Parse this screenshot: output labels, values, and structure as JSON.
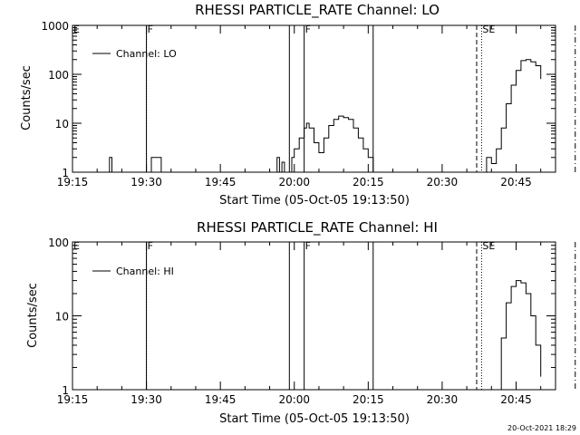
{
  "footer_text": "20-Oct-2021 18:29",
  "chart_data": [
    {
      "type": "line",
      "title": "RHESSI PARTICLE_RATE Channel: LO",
      "xlabel": "Start Time (05-Oct-05 19:13:50)",
      "ylabel": "Counts/sec",
      "yscale": "log",
      "xlim": [
        "19:15",
        "20:53"
      ],
      "ylim": [
        1,
        1000
      ],
      "x_ticks": [
        "19:15",
        "19:30",
        "19:45",
        "20:00",
        "20:15",
        "20:30",
        "20:45"
      ],
      "y_ticks": [
        "1",
        "10",
        "100",
        "1000"
      ],
      "legend": {
        "label": "Channel: LO",
        "placement": "top-left"
      },
      "markers": [
        {
          "time": "19:15",
          "style": "none",
          "label": "E"
        },
        {
          "time": "19:30",
          "style": "dotted",
          "label": ""
        },
        {
          "time": "19:30",
          "style": "solid",
          "label": "F"
        },
        {
          "time": "19:59",
          "style": "solid",
          "label": ""
        },
        {
          "time": "20:02",
          "style": "solid",
          "label": "F"
        },
        {
          "time": "20:16",
          "style": "solid",
          "label": ""
        },
        {
          "time": "20:37",
          "style": "dashed",
          "label": ""
        },
        {
          "time": "20:38",
          "style": "dotted",
          "label": "SE"
        },
        {
          "time": "20:57",
          "style": "dashdot",
          "label": ""
        }
      ],
      "segments": [
        [
          [
            "19:22",
            1
          ],
          [
            "19:22.5",
            2
          ],
          [
            "19:23",
            1
          ]
        ],
        [
          [
            "19:30",
            1
          ],
          [
            "19:31",
            2
          ],
          [
            "19:32",
            2
          ],
          [
            "19:33",
            1
          ]
        ],
        [
          [
            "19:56",
            1
          ],
          [
            "19:56.5",
            2
          ],
          [
            "19:57",
            1
          ],
          [
            "19:57.5",
            1.6
          ],
          [
            "19:58",
            1
          ]
        ],
        [
          [
            "19:59",
            1
          ],
          [
            "19:59.5",
            2
          ],
          [
            "20:00",
            3
          ],
          [
            "20:01",
            5
          ],
          [
            "20:02",
            8
          ],
          [
            "20:02.5",
            10
          ],
          [
            "20:03",
            8
          ],
          [
            "20:04",
            4
          ],
          [
            "20:05",
            2.5
          ],
          [
            "20:06",
            5
          ],
          [
            "20:07",
            9
          ],
          [
            "20:08",
            12
          ],
          [
            "20:09",
            14
          ],
          [
            "20:10",
            13
          ],
          [
            "20:11",
            12
          ],
          [
            "20:12",
            8
          ],
          [
            "20:13",
            5
          ],
          [
            "20:14",
            3
          ],
          [
            "20:15",
            2
          ],
          [
            "20:16",
            1
          ]
        ],
        [
          [
            "20:38",
            1
          ],
          [
            "20:39",
            2
          ],
          [
            "20:40",
            1.5
          ],
          [
            "20:41",
            3
          ],
          [
            "20:42",
            8
          ],
          [
            "20:43",
            25
          ],
          [
            "20:44",
            60
          ],
          [
            "20:45",
            120
          ],
          [
            "20:46",
            190
          ],
          [
            "20:47",
            200
          ],
          [
            "20:48",
            180
          ],
          [
            "20:49",
            150
          ],
          [
            "20:50",
            80
          ]
        ]
      ]
    },
    {
      "type": "line",
      "title": "RHESSI PARTICLE_RATE Channel: HI",
      "xlabel": "Start Time (05-Oct-05 19:13:50)",
      "ylabel": "Counts/sec",
      "yscale": "log",
      "xlim": [
        "19:15",
        "20:53"
      ],
      "ylim": [
        1,
        100
      ],
      "x_ticks": [
        "19:15",
        "19:30",
        "19:45",
        "20:00",
        "20:15",
        "20:30",
        "20:45"
      ],
      "y_ticks": [
        "1",
        "10",
        "100"
      ],
      "legend": {
        "label": "Channel: HI",
        "placement": "top-left"
      },
      "markers": [
        {
          "time": "19:15",
          "style": "none",
          "label": "E"
        },
        {
          "time": "19:30",
          "style": "dotted",
          "label": ""
        },
        {
          "time": "19:30",
          "style": "solid",
          "label": "F"
        },
        {
          "time": "19:59",
          "style": "solid",
          "label": ""
        },
        {
          "time": "20:02",
          "style": "solid",
          "label": "F"
        },
        {
          "time": "20:16",
          "style": "solid",
          "label": ""
        },
        {
          "time": "20:37",
          "style": "dashed",
          "label": ""
        },
        {
          "time": "20:38",
          "style": "dotted",
          "label": "SE"
        },
        {
          "time": "20:57",
          "style": "dashdot",
          "label": ""
        }
      ],
      "segments": [
        [
          [
            "20:41",
            1
          ],
          [
            "20:42",
            5
          ],
          [
            "20:43",
            15
          ],
          [
            "20:44",
            25
          ],
          [
            "20:45",
            30
          ],
          [
            "20:46",
            28
          ],
          [
            "20:47",
            20
          ],
          [
            "20:48",
            10
          ],
          [
            "20:49",
            4
          ],
          [
            "20:50",
            1.5
          ]
        ]
      ]
    }
  ]
}
